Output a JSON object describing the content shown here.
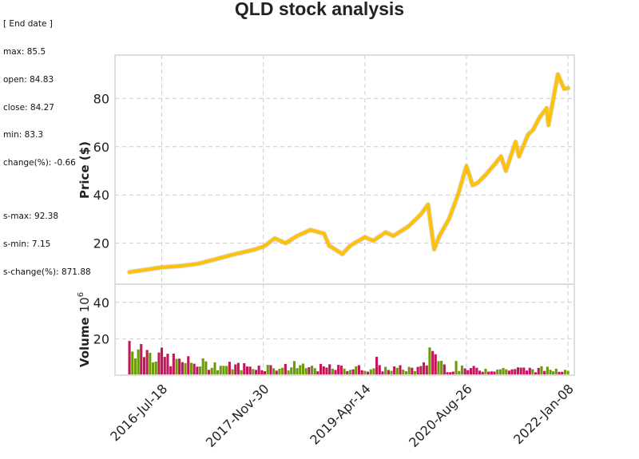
{
  "info_panel": {
    "header": "[ End date ]",
    "lines": [
      "max: 85.5",
      "open: 84.83",
      "close: 84.27",
      "min: 83.3",
      "change(%): -0.66"
    ],
    "summary": [
      "s-max: 92.38",
      "s-min: 7.15",
      "s-change(%): 871.88"
    ]
  },
  "chart_data": {
    "type": "line",
    "title": "QLD stock analysis",
    "colors": {
      "price_line": "#FFC107",
      "volume_up": "#6B9B0A",
      "volume_down": "#C2185B",
      "grid": "#cccccc",
      "frame": "#dddddd"
    },
    "grid": true,
    "price_panel": {
      "ylabel": "Price ($)",
      "ylim": [
        3,
        98
      ],
      "yticks": [
        20,
        40,
        60,
        80
      ],
      "x": [
        "2016-02-10",
        "2016-05-01",
        "2016-07-18",
        "2016-10-15",
        "2017-01-15",
        "2017-04-15",
        "2017-07-15",
        "2017-10-01",
        "2017-11-30",
        "2018-01-25",
        "2018-03-20",
        "2018-05-15",
        "2018-07-20",
        "2018-09-25",
        "2018-10-20",
        "2018-12-24",
        "2019-02-01",
        "2019-04-14",
        "2019-05-25",
        "2019-07-25",
        "2019-09-01",
        "2019-11-15",
        "2020-01-15",
        "2020-02-19",
        "2020-03-20",
        "2020-04-15",
        "2020-06-01",
        "2020-07-15",
        "2020-08-26",
        "2020-09-25",
        "2020-10-20",
        "2020-11-25",
        "2021-01-15",
        "2021-02-12",
        "2021-03-08",
        "2021-04-25",
        "2021-05-12",
        "2021-06-25",
        "2021-07-20",
        "2021-08-20",
        "2021-09-25",
        "2021-10-04",
        "2021-11-19",
        "2021-12-20",
        "2022-01-08"
      ],
      "values": [
        8.0,
        9.0,
        10.0,
        10.5,
        11.5,
        13.5,
        15.5,
        17.0,
        18.5,
        22.0,
        20.0,
        23.0,
        25.5,
        24.0,
        19.0,
        15.5,
        19.0,
        22.5,
        21.0,
        24.5,
        23.0,
        27.0,
        32.0,
        36.0,
        17.5,
        23.0,
        30.0,
        40.0,
        52.0,
        44.0,
        45.0,
        48.0,
        53.0,
        56.0,
        50.0,
        62.0,
        56.0,
        65.0,
        67.0,
        72.0,
        76.0,
        69.0,
        90.0,
        84.0,
        84.27
      ]
    },
    "volume_panel": {
      "ylabel": "Volume",
      "ylabel_exponent": "6",
      "ylabel_exponent_base": "10",
      "ylim": [
        0,
        50
      ],
      "yticks": [
        20,
        40
      ],
      "bar_count": 150
    },
    "xaxis": {
      "range": [
        "2015-12-01",
        "2022-02-08"
      ],
      "tick_dates": [
        "2016-07-18",
        "2017-11-30",
        "2019-04-14",
        "2020-08-26",
        "2022-01-08"
      ],
      "tick_labels": [
        "2016-Jul-18",
        "2017-Nov-30",
        "2019-Apr-14",
        "2020-Aug-26",
        "2022-Jan-08"
      ]
    }
  }
}
